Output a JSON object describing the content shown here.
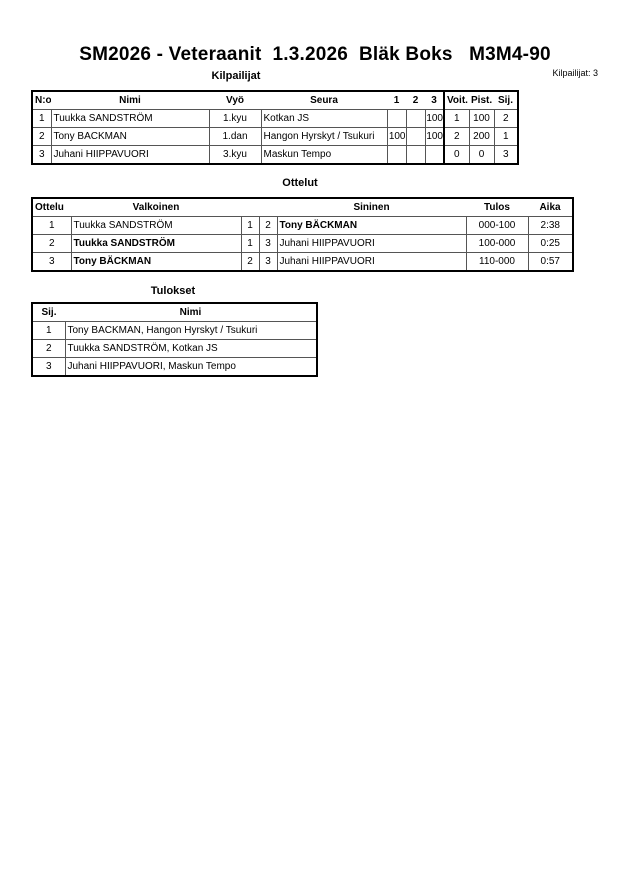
{
  "title": "SM2026 - Veteraanit  1.3.2026  Bläk Boks   M3M4-90",
  "competitors_count": "Kilpailijat: 3",
  "competitors": {
    "heading": "Kilpailijat",
    "headers": [
      "N:o",
      "Nimi",
      "Vyö",
      "Seura",
      "1",
      "2",
      "3",
      "Voit.",
      "Pist.",
      "Sij."
    ],
    "rows": [
      [
        "1",
        "Tuukka SANDSTRÖM",
        "1.kyu",
        "Kotkan JS",
        "",
        "",
        "100",
        "1",
        "100",
        "2"
      ],
      [
        "2",
        "Tony BACKMAN",
        "1.dan",
        "Hangon Hyrskyt / Tsukuri",
        "100",
        "",
        "100",
        "2",
        "200",
        "1"
      ],
      [
        "3",
        "Juhani HIIPPAVUORI",
        "3.kyu",
        "Maskun Tempo",
        "",
        "",
        "",
        "0",
        "0",
        "3"
      ]
    ]
  },
  "matches": {
    "heading": "Ottelut",
    "headers": [
      "Ottelu",
      "Valkoinen",
      "",
      "",
      "Sininen",
      "Tulos",
      "Aika"
    ],
    "rows": [
      {
        "cells": [
          "1",
          "Tuukka SANDSTRÖM",
          "1",
          "2",
          "Tony BÄCKMAN",
          "000-100",
          "2:38"
        ],
        "winner": "blue"
      },
      {
        "cells": [
          "2",
          "Tuukka SANDSTRÖM",
          "1",
          "3",
          "Juhani HIIPPAVUORI",
          "100-000",
          "0:25"
        ],
        "winner": "white"
      },
      {
        "cells": [
          "3",
          "Tony BÄCKMAN",
          "2",
          "3",
          "Juhani HIIPPAVUORI",
          "110-000",
          "0:57"
        ],
        "winner": "white"
      }
    ]
  },
  "results": {
    "heading": "Tulokset",
    "headers": [
      "Sij.",
      "Nimi"
    ],
    "rows": [
      [
        "1",
        "Tony BACKMAN, Hangon Hyrskyt / Tsukuri"
      ],
      [
        "2",
        "Tuukka SANDSTRÖM, Kotkan JS"
      ],
      [
        "3",
        "Juhani HIIPPAVUORI, Maskun Tempo"
      ]
    ]
  }
}
